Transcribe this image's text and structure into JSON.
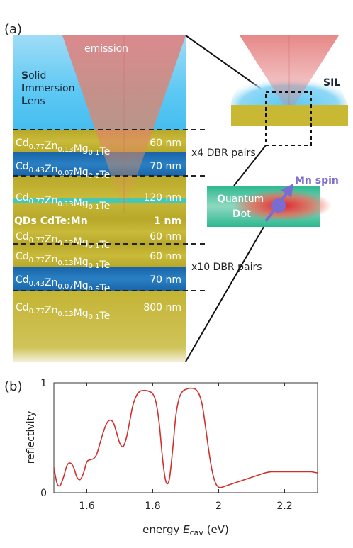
{
  "panel_a": {
    "label": "(a)",
    "emission": "emission",
    "sil": {
      "w1": "S",
      "r1": "olid",
      "w2": "I",
      "r2": "mmersion",
      "w3": "L",
      "r3": "ens"
    },
    "sil_short": "SIL",
    "layers": [
      {
        "base": [
          "Cd",
          "Zn",
          "Mg",
          "Te"
        ],
        "subs": [
          "0.77",
          "0.13",
          "0.1"
        ],
        "thickness": "60 nm"
      },
      {
        "base": [
          "Cd",
          "Zn",
          "Mg",
          "Te"
        ],
        "subs": [
          "0.43",
          "0.07",
          "0.5"
        ],
        "thickness": "70 nm"
      },
      {
        "base": [
          "Cd",
          "Zn",
          "Mg",
          "Te"
        ],
        "subs": [
          "0.77",
          "0.13",
          "0.1"
        ],
        "thickness": "120 nm"
      },
      {
        "text": "QDs CdTe:Mn",
        "thickness": "1 nm"
      },
      {
        "base": [
          "Cd",
          "Zn",
          "Mg",
          "Te"
        ],
        "subs": [
          "0.77",
          "0.13",
          "0.1"
        ],
        "thickness": "60 nm"
      },
      {
        "base": [
          "Cd",
          "Zn",
          "Mg",
          "Te"
        ],
        "subs": [
          "0.77",
          "0.13",
          "0.1"
        ],
        "thickness": "60 nm"
      },
      {
        "base": [
          "Cd",
          "Zn",
          "Mg",
          "Te"
        ],
        "subs": [
          "0.43",
          "0.07",
          "0.5"
        ],
        "thickness": "70 nm"
      },
      {
        "base": [
          "Cd",
          "Zn",
          "Mg",
          "Te"
        ],
        "subs": [
          "0.77",
          "0.13",
          "0.1"
        ],
        "thickness": "800 nm"
      }
    ],
    "dbr_top": "x4 DBR pairs",
    "dbr_bottom": "x10 DBR pairs",
    "quantum_dot": {
      "q": "Q",
      "uantum": "uantum",
      "d": "D",
      "ot": "ot"
    },
    "mn_spin": "Mn spin",
    "colors": {
      "olive": "#c8b834",
      "blue": "#1e72b6",
      "sky": "#5dc8f3",
      "qd_line": "#46c7b5",
      "emission": "#e47b7b",
      "spin": "#7b6cd0"
    }
  },
  "panel_b": {
    "label": "(b)"
  },
  "chart_data": {
    "type": "line",
    "xlabel_prefix": "energy ",
    "xlabel_symbol": "E",
    "xlabel_sub": "cav",
    "xlabel_unit": " (eV)",
    "ylabel": "reflectivity",
    "xlim": [
      1.5,
      2.3
    ],
    "ylim": [
      0,
      1
    ],
    "xticks": [
      1.6,
      1.8,
      2.0,
      2.2
    ],
    "xtick_labels": [
      "1.6",
      "1.8",
      "2",
      "2.2"
    ],
    "yticks": [
      0,
      1
    ],
    "ytick_labels": [
      "0",
      "1"
    ],
    "color": "#d0312d",
    "series": [
      {
        "x": [
          1.5,
          1.51,
          1.52,
          1.53,
          1.54,
          1.55,
          1.56,
          1.57,
          1.58,
          1.59,
          1.6,
          1.61,
          1.62,
          1.63,
          1.64,
          1.65,
          1.66,
          1.67,
          1.68,
          1.69,
          1.7,
          1.71,
          1.72,
          1.73,
          1.74,
          1.75,
          1.76,
          1.77,
          1.78,
          1.79,
          1.8,
          1.81,
          1.82,
          1.83,
          1.84,
          1.85,
          1.86,
          1.87,
          1.88,
          1.89,
          1.9,
          1.91,
          1.92,
          1.93,
          1.94,
          1.95,
          1.96,
          1.97,
          1.98,
          1.99,
          2.0,
          2.01,
          2.02,
          2.04,
          2.06,
          2.08,
          2.1,
          2.12,
          2.14,
          2.16,
          2.18,
          2.2,
          2.22,
          2.24,
          2.26,
          2.28,
          2.3
        ],
        "y": [
          0.23,
          0.08,
          0.07,
          0.15,
          0.25,
          0.27,
          0.23,
          0.14,
          0.12,
          0.18,
          0.28,
          0.3,
          0.31,
          0.35,
          0.45,
          0.55,
          0.63,
          0.66,
          0.64,
          0.55,
          0.45,
          0.42,
          0.5,
          0.65,
          0.8,
          0.88,
          0.92,
          0.93,
          0.93,
          0.92,
          0.9,
          0.82,
          0.62,
          0.3,
          0.1,
          0.12,
          0.38,
          0.7,
          0.86,
          0.92,
          0.94,
          0.95,
          0.95,
          0.94,
          0.9,
          0.8,
          0.6,
          0.38,
          0.2,
          0.09,
          0.05,
          0.05,
          0.06,
          0.08,
          0.1,
          0.12,
          0.14,
          0.16,
          0.18,
          0.19,
          0.19,
          0.19,
          0.19,
          0.19,
          0.19,
          0.19,
          0.18
        ]
      }
    ]
  }
}
